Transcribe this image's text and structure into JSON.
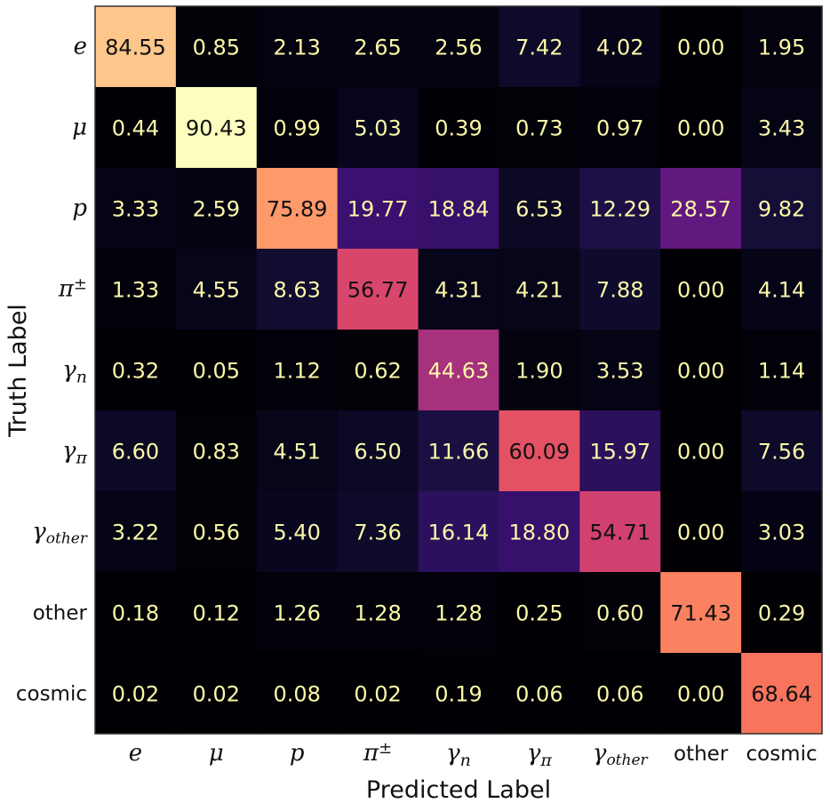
{
  "chart_data": {
    "type": "heatmap",
    "title": "",
    "xlabel": "Predicted Label",
    "ylabel": "Truth Label",
    "labels": [
      {
        "base": "e",
        "sub": "",
        "sup": "",
        "style": "math"
      },
      {
        "base": "μ",
        "sub": "",
        "sup": "",
        "style": "math"
      },
      {
        "base": "p",
        "sub": "",
        "sup": "",
        "style": "math"
      },
      {
        "base": "π",
        "sub": "",
        "sup": "±",
        "style": "math"
      },
      {
        "base": "γ",
        "sub": "n",
        "sup": "",
        "style": "math"
      },
      {
        "base": "γ",
        "sub": "π",
        "sup": "",
        "style": "math"
      },
      {
        "base": "γ",
        "sub": "other",
        "sup": "",
        "style": "math"
      },
      {
        "base": "other",
        "sub": "",
        "sup": "",
        "style": "text"
      },
      {
        "base": "cosmic",
        "sub": "",
        "sup": "",
        "style": "text"
      }
    ],
    "values": [
      [
        "84.55",
        "0.85",
        "2.13",
        "2.65",
        "2.56",
        "7.42",
        "4.02",
        "0.00",
        "1.95"
      ],
      [
        "0.44",
        "90.43",
        "0.99",
        "5.03",
        "0.39",
        "0.73",
        "0.97",
        "0.00",
        "3.43"
      ],
      [
        "3.33",
        "2.59",
        "75.89",
        "19.77",
        "18.84",
        "6.53",
        "12.29",
        "28.57",
        "9.82"
      ],
      [
        "1.33",
        "4.55",
        "8.63",
        "56.77",
        "4.31",
        "4.21",
        "7.88",
        "0.00",
        "4.14"
      ],
      [
        "0.32",
        "0.05",
        "1.12",
        "0.62",
        "44.63",
        "1.90",
        "3.53",
        "0.00",
        "1.14"
      ],
      [
        "6.60",
        "0.83",
        "4.51",
        "6.50",
        "11.66",
        "60.09",
        "15.97",
        "0.00",
        "7.56"
      ],
      [
        "3.22",
        "0.56",
        "5.40",
        "7.36",
        "16.14",
        "18.80",
        "54.71",
        "0.00",
        "3.03"
      ],
      [
        "0.18",
        "0.12",
        "1.26",
        "1.28",
        "1.28",
        "0.25",
        "0.60",
        "71.43",
        "0.29"
      ],
      [
        "0.02",
        "0.02",
        "0.08",
        "0.02",
        "0.19",
        "0.06",
        "0.06",
        "0.00",
        "68.64"
      ]
    ],
    "color_range": [
      0,
      90.43
    ],
    "colormap": "magma",
    "colors": {
      "text_light": "#fbf7a8",
      "text_dark": "#111111",
      "frame": "#333333"
    }
  }
}
